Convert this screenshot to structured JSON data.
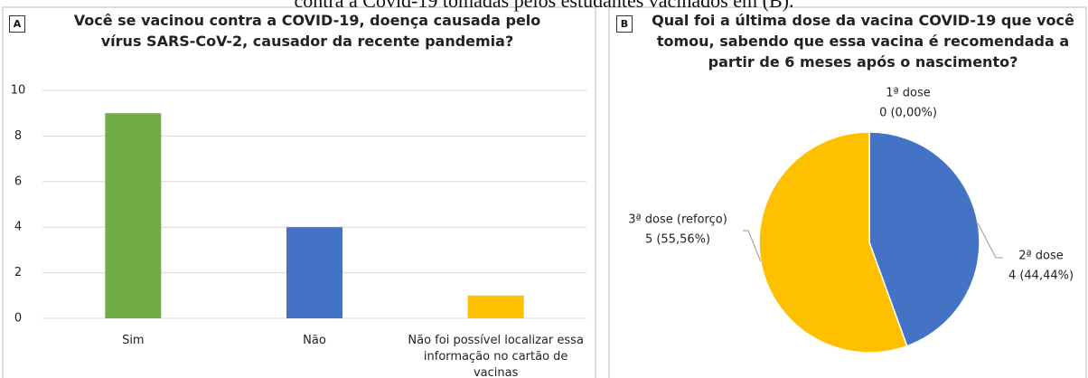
{
  "caption": "contra a Covid-19 tomadas pelos estudantes vacinados em (B).",
  "chart_data": [
    {
      "type": "bar",
      "panel": "A",
      "title": "Você se vacinou contra a COVID-19, doença causada pelo vírus SARS-CoV-2, causador da recente pandemia?",
      "categories": [
        "Sim",
        "Não",
        "Não foi possível localizar essa informação no cartão de vacinas"
      ],
      "values": [
        9,
        4,
        1
      ],
      "colors": [
        "#70ad47",
        "#4472c4",
        "#ffc000"
      ],
      "ylim": [
        0,
        10
      ],
      "yticks": [
        0,
        2,
        4,
        6,
        8,
        10
      ],
      "grid": true
    },
    {
      "type": "pie",
      "panel": "B",
      "title": "Qual foi a última dose da vacina COVID-19 que você tomou, sabendo que essa vacina é recomendada a partir de 6 meses após o nascimento?",
      "categories": [
        "1ª dose",
        "2ª dose",
        "3ª dose (reforço)"
      ],
      "values": [
        0,
        4,
        5
      ],
      "value_labels": [
        "0 (0,00%)",
        "4 (44,44%)",
        "5 (55,56%)"
      ],
      "colors": [
        "#ed7d31",
        "#4472c4",
        "#ffc000"
      ]
    }
  ]
}
